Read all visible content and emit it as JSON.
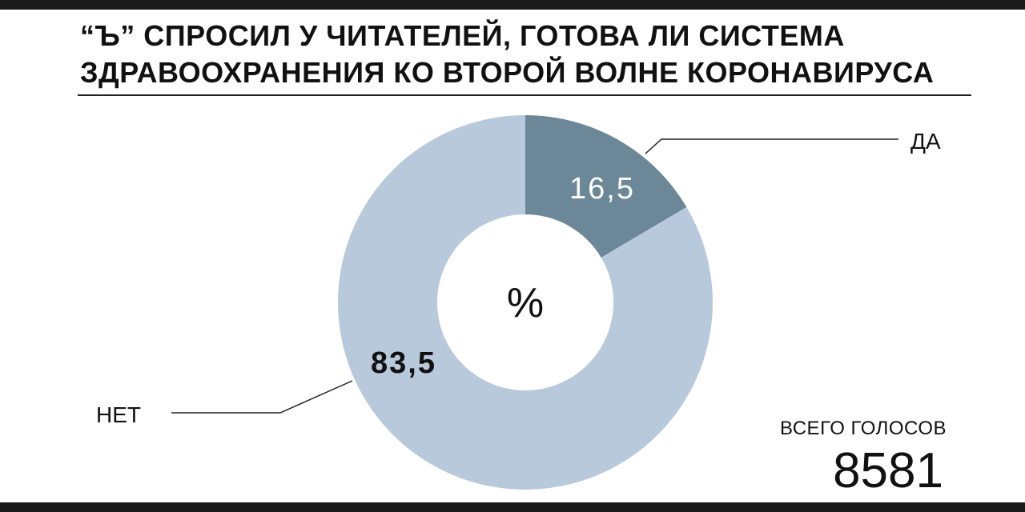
{
  "title": "“Ъ” СПРОСИЛ У ЧИТАТЕЛЕЙ, ГОТОВА ЛИ СИСТЕМА ЗДРАВООХРАНЕНИЯ КО ВТОРОЙ ВОЛНЕ КОРОНАВИРУСА",
  "chart_data": {
    "type": "pie",
    "unit_label": "%",
    "slices": [
      {
        "label": "ДА",
        "value": 16.5,
        "display": "16,5",
        "color": "#6b8798"
      },
      {
        "label": "НЕТ",
        "value": 83.5,
        "display": "83,5",
        "color": "#b8c9dc"
      }
    ],
    "title": "“Ъ” СПРОСИЛ У ЧИТАТЕЛЕЙ, ГОТОВА ЛИ СИСТЕМА ЗДРАВООХРАНЕНИЯ КО ВТОРОЙ ВОЛНЕ КОРОНАВИРУСА",
    "total_caption": "ВСЕГО ГОЛОСОВ",
    "total_value": "8581"
  }
}
